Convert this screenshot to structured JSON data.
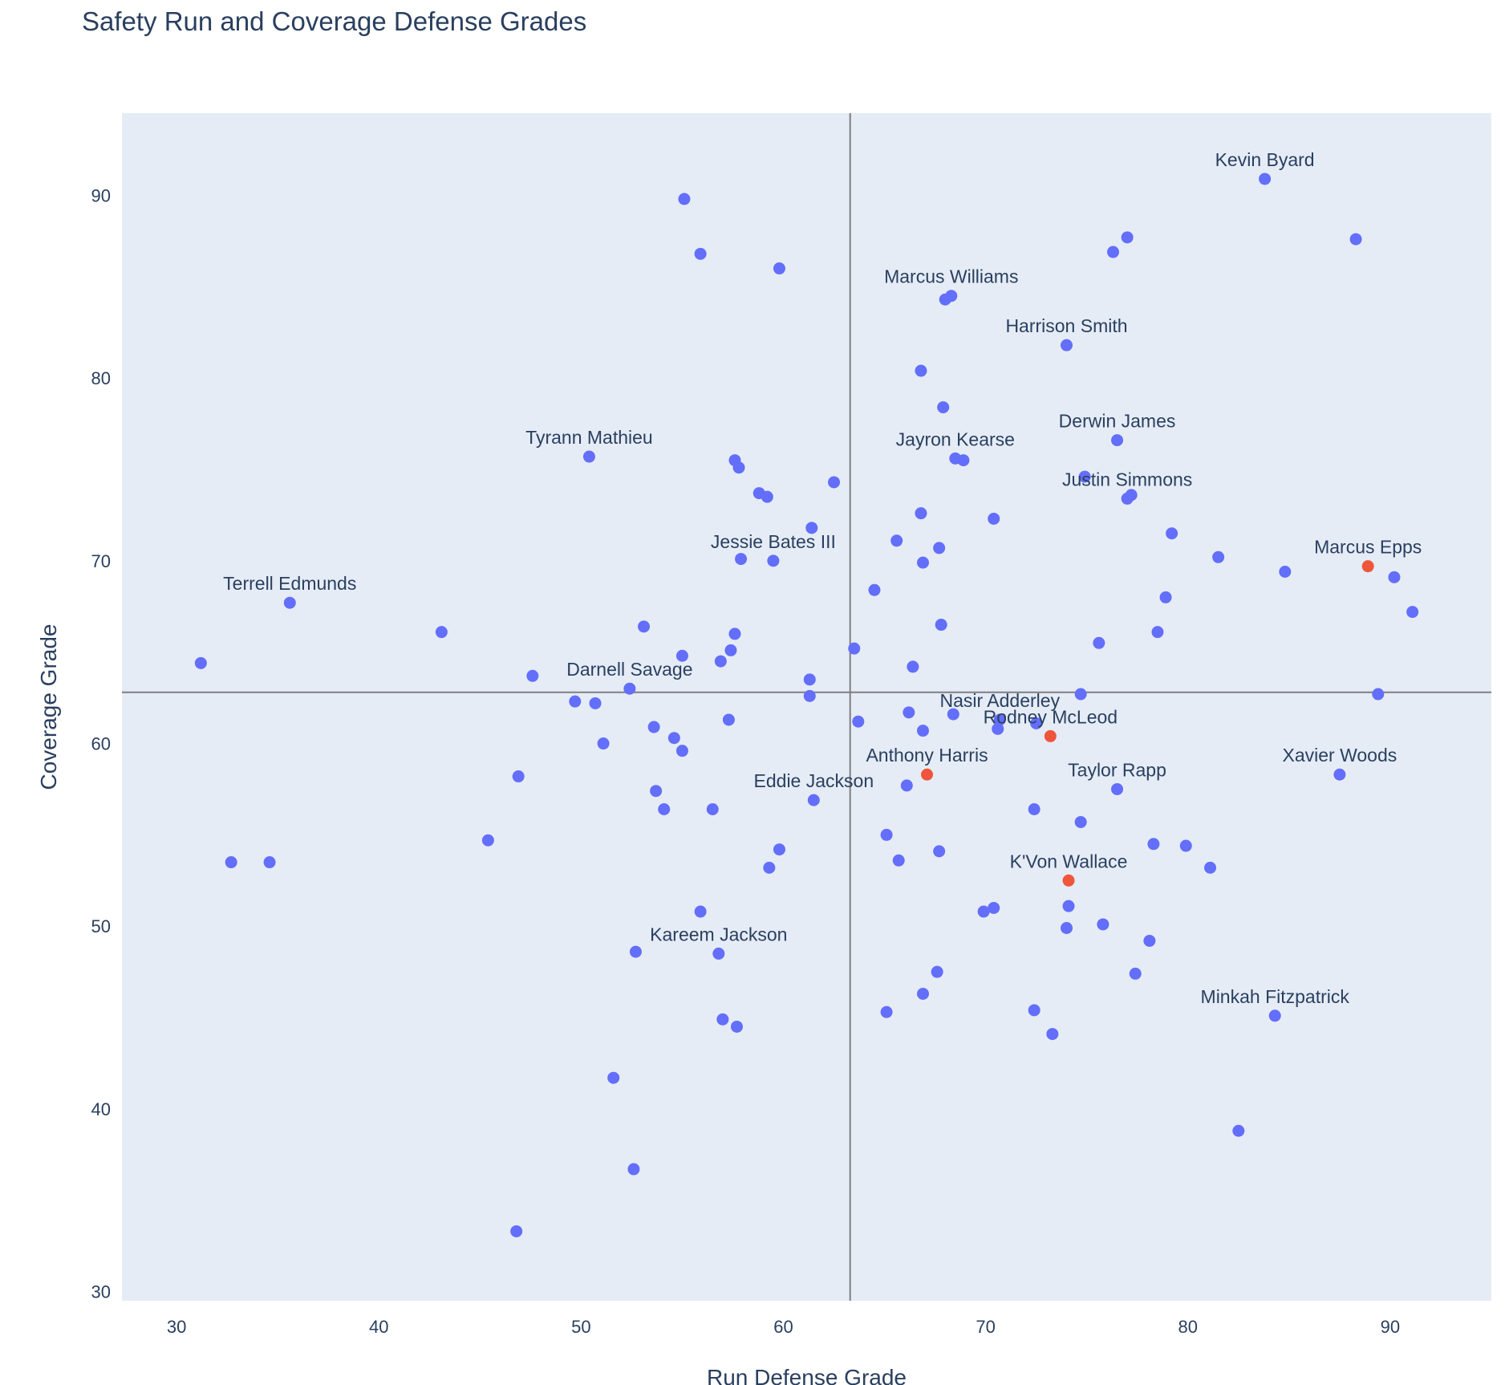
{
  "chart_data": {
    "type": "scatter",
    "title": "Safety Run and Coverage Defense Grades",
    "xlabel": "Run Defense Grade",
    "ylabel": "Coverage Grade",
    "xlim": [
      27.3,
      95
    ],
    "ylim": [
      29.5,
      94.5
    ],
    "xticks": [
      30,
      40,
      50,
      60,
      70,
      80,
      90
    ],
    "yticks": [
      30,
      40,
      50,
      60,
      70,
      80,
      90
    ],
    "grid": false,
    "reference_lines": {
      "x": 63.3,
      "y": 62.8
    },
    "colors": {
      "plot_bg": "#e5ecf6",
      "point": "#636efa",
      "highlight": "#ef553b",
      "ref_line": "#7f7f7f",
      "text": "#2a3f5f"
    },
    "points": [
      {
        "x": 83.8,
        "y": 90.9,
        "label": "Kevin Byard"
      },
      {
        "x": 68.3,
        "y": 84.5,
        "label": "Marcus Williams"
      },
      {
        "x": 74.0,
        "y": 81.8,
        "label": "Harrison Smith"
      },
      {
        "x": 76.5,
        "y": 76.6,
        "label": "Derwin James"
      },
      {
        "x": 50.4,
        "y": 75.7,
        "label": "Tyrann Mathieu"
      },
      {
        "x": 68.5,
        "y": 75.6,
        "label": "Jayron Kearse"
      },
      {
        "x": 77.0,
        "y": 73.4,
        "label": "Justin Simmons"
      },
      {
        "x": 88.9,
        "y": 69.7,
        "label": "Marcus Epps",
        "highlight": true
      },
      {
        "x": 59.5,
        "y": 70.0,
        "label": "Jessie Bates III"
      },
      {
        "x": 35.6,
        "y": 67.7,
        "label": "Terrell Edmunds"
      },
      {
        "x": 52.4,
        "y": 63.0,
        "label": "Darnell Savage"
      },
      {
        "x": 70.7,
        "y": 61.3,
        "label": "Nasir Adderley"
      },
      {
        "x": 73.2,
        "y": 60.4,
        "label": "Rodney McLeod",
        "highlight": true
      },
      {
        "x": 67.1,
        "y": 58.3,
        "label": "Anthony Harris",
        "highlight": true
      },
      {
        "x": 87.5,
        "y": 58.3,
        "label": "Xavier Woods"
      },
      {
        "x": 76.5,
        "y": 57.5,
        "label": "Taylor Rapp"
      },
      {
        "x": 61.5,
        "y": 56.9,
        "label": "Eddie Jackson"
      },
      {
        "x": 74.1,
        "y": 52.5,
        "label": "K'Von Wallace",
        "highlight": true
      },
      {
        "x": 56.8,
        "y": 48.5,
        "label": "Kareem Jackson"
      },
      {
        "x": 84.3,
        "y": 45.1,
        "label": "Minkah Fitzpatrick"
      },
      {
        "x": 55.1,
        "y": 89.8
      },
      {
        "x": 55.9,
        "y": 86.8
      },
      {
        "x": 59.8,
        "y": 86.0
      },
      {
        "x": 77.0,
        "y": 87.7
      },
      {
        "x": 76.3,
        "y": 86.9
      },
      {
        "x": 88.3,
        "y": 87.6
      },
      {
        "x": 68.0,
        "y": 84.3
      },
      {
        "x": 66.8,
        "y": 80.4
      },
      {
        "x": 67.9,
        "y": 78.4
      },
      {
        "x": 57.6,
        "y": 75.5
      },
      {
        "x": 57.8,
        "y": 75.1
      },
      {
        "x": 62.5,
        "y": 74.3
      },
      {
        "x": 58.8,
        "y": 73.7
      },
      {
        "x": 59.2,
        "y": 73.5
      },
      {
        "x": 68.9,
        "y": 75.5
      },
      {
        "x": 74.9,
        "y": 74.6
      },
      {
        "x": 77.2,
        "y": 73.6
      },
      {
        "x": 66.8,
        "y": 72.6
      },
      {
        "x": 70.4,
        "y": 72.3
      },
      {
        "x": 61.4,
        "y": 71.8
      },
      {
        "x": 65.6,
        "y": 71.1
      },
      {
        "x": 67.7,
        "y": 70.7
      },
      {
        "x": 79.2,
        "y": 71.5
      },
      {
        "x": 57.9,
        "y": 70.1
      },
      {
        "x": 66.9,
        "y": 69.9
      },
      {
        "x": 81.5,
        "y": 70.2
      },
      {
        "x": 84.8,
        "y": 69.4
      },
      {
        "x": 90.2,
        "y": 69.1
      },
      {
        "x": 64.5,
        "y": 68.4
      },
      {
        "x": 78.9,
        "y": 68.0
      },
      {
        "x": 91.1,
        "y": 67.2
      },
      {
        "x": 43.1,
        "y": 66.1
      },
      {
        "x": 53.1,
        "y": 66.4
      },
      {
        "x": 57.6,
        "y": 66.0
      },
      {
        "x": 67.8,
        "y": 66.5
      },
      {
        "x": 78.5,
        "y": 66.1
      },
      {
        "x": 75.6,
        "y": 65.5
      },
      {
        "x": 63.5,
        "y": 65.2
      },
      {
        "x": 57.4,
        "y": 65.1
      },
      {
        "x": 55.0,
        "y": 64.8
      },
      {
        "x": 56.9,
        "y": 64.5
      },
      {
        "x": 31.2,
        "y": 64.4
      },
      {
        "x": 66.4,
        "y": 64.2
      },
      {
        "x": 47.6,
        "y": 63.7
      },
      {
        "x": 61.3,
        "y": 63.5
      },
      {
        "x": 61.3,
        "y": 62.6
      },
      {
        "x": 74.7,
        "y": 62.7
      },
      {
        "x": 89.4,
        "y": 62.7
      },
      {
        "x": 49.7,
        "y": 62.3
      },
      {
        "x": 50.7,
        "y": 62.2
      },
      {
        "x": 66.2,
        "y": 61.7
      },
      {
        "x": 68.4,
        "y": 61.6
      },
      {
        "x": 57.3,
        "y": 61.3
      },
      {
        "x": 63.7,
        "y": 61.2
      },
      {
        "x": 72.5,
        "y": 61.1
      },
      {
        "x": 53.6,
        "y": 60.9
      },
      {
        "x": 66.9,
        "y": 60.7
      },
      {
        "x": 70.6,
        "y": 60.8
      },
      {
        "x": 54.6,
        "y": 60.3
      },
      {
        "x": 51.1,
        "y": 60.0
      },
      {
        "x": 55.0,
        "y": 59.6
      },
      {
        "x": 46.9,
        "y": 58.2
      },
      {
        "x": 66.1,
        "y": 57.7
      },
      {
        "x": 53.7,
        "y": 57.4
      },
      {
        "x": 54.1,
        "y": 56.4
      },
      {
        "x": 56.5,
        "y": 56.4
      },
      {
        "x": 72.4,
        "y": 56.4
      },
      {
        "x": 74.7,
        "y": 55.7
      },
      {
        "x": 65.1,
        "y": 55.0
      },
      {
        "x": 45.4,
        "y": 54.7
      },
      {
        "x": 78.3,
        "y": 54.5
      },
      {
        "x": 79.9,
        "y": 54.4
      },
      {
        "x": 59.8,
        "y": 54.2
      },
      {
        "x": 67.7,
        "y": 54.1
      },
      {
        "x": 65.7,
        "y": 53.6
      },
      {
        "x": 32.7,
        "y": 53.5
      },
      {
        "x": 34.6,
        "y": 53.5
      },
      {
        "x": 59.3,
        "y": 53.2
      },
      {
        "x": 81.1,
        "y": 53.2
      },
      {
        "x": 74.1,
        "y": 51.1
      },
      {
        "x": 70.4,
        "y": 51.0
      },
      {
        "x": 69.9,
        "y": 50.8
      },
      {
        "x": 55.9,
        "y": 50.8
      },
      {
        "x": 75.8,
        "y": 50.1
      },
      {
        "x": 74.0,
        "y": 49.9
      },
      {
        "x": 78.1,
        "y": 49.2
      },
      {
        "x": 52.7,
        "y": 48.6
      },
      {
        "x": 67.6,
        "y": 47.5
      },
      {
        "x": 77.4,
        "y": 47.4
      },
      {
        "x": 66.9,
        "y": 46.3
      },
      {
        "x": 65.1,
        "y": 45.3
      },
      {
        "x": 72.4,
        "y": 45.4
      },
      {
        "x": 57.0,
        "y": 44.9
      },
      {
        "x": 57.7,
        "y": 44.5
      },
      {
        "x": 73.3,
        "y": 44.1
      },
      {
        "x": 51.6,
        "y": 41.7
      },
      {
        "x": 82.5,
        "y": 38.8
      },
      {
        "x": 52.6,
        "y": 36.7
      },
      {
        "x": 46.8,
        "y": 33.3
      }
    ]
  }
}
